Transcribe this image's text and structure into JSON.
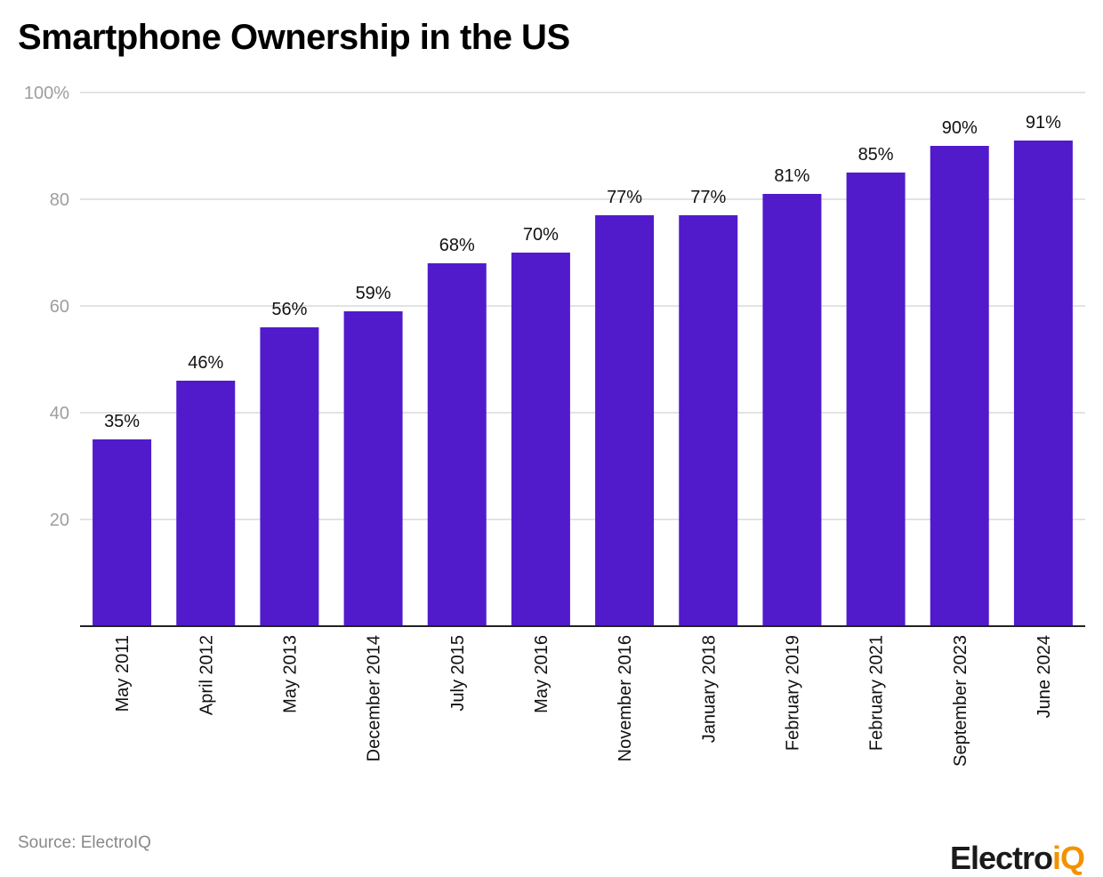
{
  "chart_data": {
    "type": "bar",
    "title": "Smartphone Ownership in the US",
    "categories": [
      "May 2011",
      "April 2012",
      "May 2013",
      "December 2014",
      "July 2015",
      "May 2016",
      "November 2016",
      "January 2018",
      "February 2019",
      "February 2021",
      "September 2023",
      "June 2024"
    ],
    "values": [
      35,
      46,
      56,
      59,
      68,
      70,
      77,
      77,
      81,
      85,
      90,
      91
    ],
    "data_labels": [
      "35%",
      "46%",
      "56%",
      "59%",
      "68%",
      "70%",
      "77%",
      "77%",
      "81%",
      "85%",
      "90%",
      "91%"
    ],
    "ylim": [
      0,
      100
    ],
    "yticks": [
      20,
      40,
      60,
      80,
      100
    ],
    "ytick_labels": [
      "20",
      "40",
      "60",
      "80",
      "100%"
    ],
    "grid": true,
    "bar_color": "#511bcc",
    "xlabel": "",
    "ylabel": ""
  },
  "source": "Source: ElectroIQ",
  "logo": {
    "text_main": "Electro",
    "text_accent": "iQ",
    "accent_color": "#f39200"
  }
}
